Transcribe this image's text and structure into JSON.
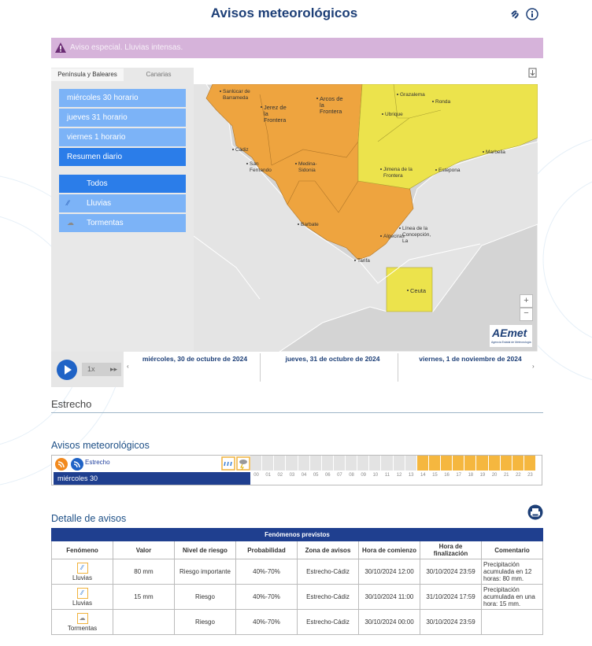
{
  "header": {
    "title": "Avisos meteorológicos"
  },
  "alert": "Aviso especial. Lluvias intensas.",
  "tabs": [
    "Península y Baleares",
    "Canarias"
  ],
  "menu": [
    "miércoles 30 horario",
    "jueves 31 horario",
    "viernes 1 horario",
    "Resumen diario"
  ],
  "filters": [
    "Todos",
    "Lluvias",
    "Tormentas"
  ],
  "map": {
    "places": [
      "Sanlúcar de Barrameda",
      "Jerez de la Frontera",
      "Arcos de la Frontera",
      "Grazalema",
      "Ronda",
      "Ubrique",
      "Cádiz",
      "San Fernando",
      "Medina-Sidonia",
      "Jimena de la Frontera",
      "Estepona",
      "Marbella",
      "Barbate",
      "Algeciras",
      "Línea de la Concepción, La",
      "Tarifa",
      "Ceuta"
    ],
    "logo": "AEmet",
    "logo_sub": "Agencia Estatal de Meteorología"
  },
  "timeline": {
    "speed": "1x",
    "dates": [
      "miércoles, 30 de octubre de 2024",
      "jueves, 31 de octubre de 2024",
      "viernes, 1 de noviembre de 2024"
    ]
  },
  "zone": "Estrecho",
  "hourly": {
    "title": "Avisos meteorológicos",
    "zone": "Estrecho",
    "day": "miércoles 30",
    "hours": [
      "00",
      "01",
      "02",
      "03",
      "04",
      "05",
      "06",
      "07",
      "08",
      "09",
      "10",
      "11",
      "12",
      "13",
      "14",
      "15",
      "16",
      "17",
      "18",
      "19",
      "20",
      "21",
      "22",
      "23"
    ],
    "colors": [
      "#e3e3e3",
      "#e3e3e3",
      "#e3e3e3",
      "#e3e3e3",
      "#e3e3e3",
      "#e3e3e3",
      "#e3e3e3",
      "#e3e3e3",
      "#e3e3e3",
      "#e3e3e3",
      "#e3e3e3",
      "#e3e3e3",
      "#e3e3e3",
      "#e3e3e3",
      "#f5b73f",
      "#f5b73f",
      "#f5b73f",
      "#f5b73f",
      "#f5b73f",
      "#f5b73f",
      "#f5b73f",
      "#f5b73f",
      "#f5b73f",
      "#f5b73f"
    ]
  },
  "detail": {
    "title": "Detalle de avisos"
  },
  "table": {
    "caption": "Fenómenos previstos",
    "headers": [
      "Fenómeno",
      "Valor",
      "Nivel de riesgo",
      "Probabilidad",
      "Zona de avisos",
      "Hora de comienzo",
      "Hora de finalización",
      "Comentario"
    ],
    "rows": [
      {
        "phenomenon": "Lluvias",
        "value": "80 mm",
        "level": "Riesgo importante",
        "probability": "40%-70%",
        "zone": "Estrecho-Cádiz",
        "start": "30/10/2024 12:00",
        "end": "30/10/2024 23:59",
        "comment": "Precipitación acumulada en 12 horas: 80 mm."
      },
      {
        "phenomenon": "Lluvias",
        "value": "15 mm",
        "level": "Riesgo",
        "probability": "40%-70%",
        "zone": "Estrecho-Cádiz",
        "start": "30/10/2024 11:00",
        "end": "31/10/2024 17:59",
        "comment": "Precipitación acumulada en una hora: 15 mm."
      },
      {
        "phenomenon": "Tormentas",
        "level": "Riesgo",
        "probability": "40%-70%",
        "zone": "Estrecho-Cádiz",
        "start": "30/10/2024 00:00",
        "end": "30/10/2024 23:59"
      }
    ]
  }
}
